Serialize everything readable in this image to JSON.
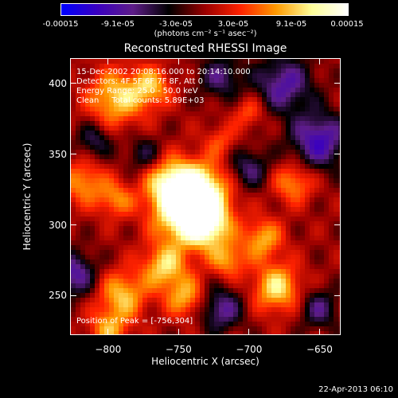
{
  "colorbar": {
    "labels": [
      "-0.00015",
      "-9.1e-05",
      "-3.0e-05",
      "3.0e-05",
      "9.1e-05",
      "0.00015"
    ],
    "units": "(photons cm⁻² s⁻¹ asec⁻²)",
    "range": [
      -0.00015,
      0.00015
    ],
    "colors": [
      "#0000ff",
      "#3a00c0",
      "#5e1d88",
      "#000000",
      "#9a0000",
      "#ff2200",
      "#ff9a00",
      "#ffff9a",
      "#ffffff"
    ]
  },
  "chart_data": {
    "type": "heatmap",
    "title": "Reconstructed RHESSI Image",
    "xlabel": "Heliocentric X (arcsec)",
    "ylabel": "Heliocentric Y (arcsec)",
    "xlim": [
      -827,
      -635
    ],
    "ylim": [
      222,
      418
    ],
    "xticks": [
      -800,
      -750,
      -700,
      -650
    ],
    "yticks": [
      250,
      300,
      350,
      400
    ],
    "peak": [
      -756,
      304
    ],
    "blobs": [
      {
        "x": -745,
        "y": 310,
        "amp": 1.0,
        "w": 16
      },
      {
        "x": -735,
        "y": 325,
        "amp": 0.75,
        "w": 14
      },
      {
        "x": -757,
        "y": 330,
        "amp": 0.6,
        "w": 12
      },
      {
        "x": -730,
        "y": 300,
        "amp": 0.7,
        "w": 12
      },
      {
        "x": -795,
        "y": 390,
        "amp": 0.65,
        "w": 14
      },
      {
        "x": -770,
        "y": 398,
        "amp": 0.55,
        "w": 10
      },
      {
        "x": -818,
        "y": 330,
        "amp": 0.5,
        "w": 11
      },
      {
        "x": -795,
        "y": 318,
        "amp": 0.45,
        "w": 9
      },
      {
        "x": -790,
        "y": 250,
        "amp": 0.6,
        "w": 12
      },
      {
        "x": -800,
        "y": 225,
        "amp": 0.5,
        "w": 10
      },
      {
        "x": -760,
        "y": 270,
        "amp": 0.65,
        "w": 11
      },
      {
        "x": -745,
        "y": 248,
        "amp": 0.55,
        "w": 10
      },
      {
        "x": -680,
        "y": 255,
        "amp": 0.7,
        "w": 12
      },
      {
        "x": -690,
        "y": 290,
        "amp": 0.55,
        "w": 10
      },
      {
        "x": -668,
        "y": 330,
        "amp": 0.5,
        "w": 10
      },
      {
        "x": -715,
        "y": 275,
        "amp": 0.5,
        "w": 9
      },
      {
        "x": -700,
        "y": 380,
        "amp": 0.35,
        "w": 8
      },
      {
        "x": -720,
        "y": 360,
        "amp": 0.3,
        "w": 8
      },
      {
        "x": -650,
        "y": 360,
        "amp": -0.7,
        "w": 14
      },
      {
        "x": -675,
        "y": 400,
        "amp": -0.6,
        "w": 14
      },
      {
        "x": -700,
        "y": 340,
        "amp": -0.45,
        "w": 10
      },
      {
        "x": -720,
        "y": 240,
        "amp": -0.55,
        "w": 11
      },
      {
        "x": -825,
        "y": 265,
        "amp": -0.6,
        "w": 11
      },
      {
        "x": -810,
        "y": 360,
        "amp": -0.4,
        "w": 9
      },
      {
        "x": -650,
        "y": 240,
        "amp": -0.45,
        "w": 10
      },
      {
        "x": -775,
        "y": 350,
        "amp": -0.35,
        "w": 9
      },
      {
        "x": -720,
        "y": 405,
        "amp": -0.45,
        "w": 11
      }
    ]
  },
  "annotations": {
    "time_range": "15-Dec-2002 20:08:16.000 to 20:14:10.000",
    "detectors": "Detectors: 4F 5F 6F 7F 8F, Att 0",
    "energy": "Energy Range: 25.0 - 50.0 keV",
    "clean": "Clean     Total counts: 5.89E+03",
    "peak_label": "Position of Peak = [-756,304]"
  },
  "timestamp": "22-Apr-2013 06:10"
}
